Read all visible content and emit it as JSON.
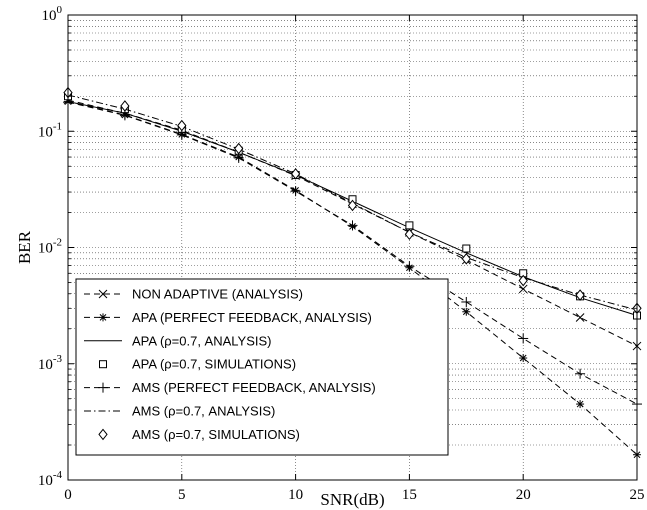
{
  "chart_data": {
    "type": "line",
    "xlabel": "SNR(dB)",
    "ylabel": "BER",
    "xlim": [
      0,
      25
    ],
    "ylim": [
      0.0001,
      1
    ],
    "y_scale": "log",
    "grid": true,
    "legend_position": "bottom-left",
    "x_ticks": [
      0,
      5,
      10,
      15,
      20,
      25
    ],
    "x_tick_labels": [
      "0",
      "5",
      "10",
      "15",
      "20",
      "25"
    ],
    "y_ticks": [
      1,
      0.1,
      0.01,
      0.001,
      0.0001
    ],
    "y_tick_labels": [
      {
        "base": "10",
        "exp": "0"
      },
      {
        "base": "10",
        "exp": "-1"
      },
      {
        "base": "10",
        "exp": "-2"
      },
      {
        "base": "10",
        "exp": "-3"
      },
      {
        "base": "10",
        "exp": "-4"
      }
    ],
    "series": [
      {
        "name": "NON ADAPTIVE (ANALYSIS)",
        "line": "dashed",
        "marker": "x",
        "x": [
          0,
          2.5,
          5,
          7.5,
          10,
          12.5,
          15,
          17.5,
          20,
          22.5,
          25
        ],
        "values": [
          0.185,
          0.143,
          0.102,
          0.066,
          0.0415,
          0.0237,
          0.0135,
          0.0078,
          0.0044,
          0.0025,
          0.00142
        ]
      },
      {
        "name": "APA (PERFECT FEEDBACK, ANALYSIS)",
        "line": "dashed",
        "marker": "star",
        "x": [
          0,
          2.5,
          5,
          7.5,
          10,
          12.5,
          15,
          17.5,
          20,
          22.5,
          25
        ],
        "values": [
          0.18,
          0.138,
          0.094,
          0.06,
          0.031,
          0.0152,
          0.0067,
          0.0028,
          0.00112,
          0.00045,
          0.000165
        ]
      },
      {
        "name": "APA (ρ=0.7, ANALYSIS)",
        "line": "solid",
        "marker": "none",
        "x": [
          0,
          2.5,
          5,
          7.5,
          10,
          12.5,
          15,
          17.5,
          20,
          22.5,
          25
        ],
        "values": [
          0.18,
          0.143,
          0.1,
          0.066,
          0.042,
          0.025,
          0.0148,
          0.009,
          0.0056,
          0.0037,
          0.0026
        ]
      },
      {
        "name": "APA (ρ=0.7, SIMULATIONS)",
        "line": "none",
        "marker": "square",
        "x": [
          0,
          2.5,
          5,
          7.5,
          10,
          12.5,
          15,
          17.5,
          20,
          22.5,
          25
        ],
        "values": [
          0.2,
          0.155,
          0.105,
          0.068,
          0.042,
          0.026,
          0.0155,
          0.0098,
          0.006,
          0.0038,
          0.0026
        ]
      },
      {
        "name": "AMS (PERFECT FEEDBACK, ANALYSIS)",
        "line": "dashed",
        "marker": "plus",
        "x": [
          0,
          2.5,
          5,
          7.5,
          10,
          12.5,
          15,
          17.5,
          20,
          22.5,
          25
        ],
        "values": [
          0.178,
          0.137,
          0.093,
          0.059,
          0.0305,
          0.0155,
          0.0069,
          0.0034,
          0.00165,
          0.00082,
          0.00045
        ]
      },
      {
        "name": "AMS (ρ=0.7, ANALYSIS)",
        "line": "dashdot",
        "marker": "none",
        "x": [
          0,
          2.5,
          5,
          7.5,
          10,
          12.5,
          15,
          17.5,
          20,
          22.5,
          25
        ],
        "values": [
          0.205,
          0.155,
          0.11,
          0.07,
          0.043,
          0.024,
          0.0135,
          0.0082,
          0.0055,
          0.0039,
          0.0029
        ]
      },
      {
        "name": "AMS (ρ=0.7, SIMULATIONS)",
        "line": "none",
        "marker": "diamond",
        "x": [
          0,
          2.5,
          5,
          7.5,
          10,
          12.5,
          15,
          17.5,
          20,
          22.5,
          25
        ],
        "values": [
          0.215,
          0.165,
          0.112,
          0.071,
          0.043,
          0.023,
          0.013,
          0.008,
          0.0052,
          0.0039,
          0.003
        ]
      }
    ]
  }
}
